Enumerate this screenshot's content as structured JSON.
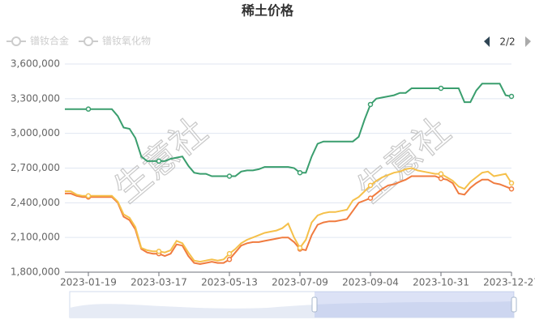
{
  "chart_data": {
    "type": "line",
    "title": "稀土价格",
    "legend": {
      "items": [
        "镨钕合金",
        "镨钕氧化物"
      ],
      "page": "2/2"
    },
    "watermark": "生意社",
    "categories": [
      null,
      null,
      null,
      null,
      "2023-01-19",
      null,
      null,
      null,
      null,
      null,
      null,
      null,
      null,
      null,
      null,
      null,
      "2023-03-17",
      null,
      null,
      null,
      null,
      null,
      null,
      null,
      null,
      null,
      null,
      null,
      "2023-05-13",
      null,
      null,
      null,
      null,
      null,
      null,
      null,
      null,
      null,
      null,
      null,
      "2023-07-09",
      null,
      null,
      null,
      null,
      null,
      null,
      null,
      null,
      null,
      null,
      null,
      "2023-09-04",
      null,
      null,
      null,
      null,
      null,
      null,
      null,
      null,
      null,
      null,
      null,
      "2023-10-31",
      null,
      null,
      null,
      null,
      null,
      null,
      null,
      null,
      null,
      null,
      null,
      "2023-12-27"
    ],
    "series": [
      {
        "color": "#3a9e6e",
        "values": [
          3210000,
          3210000,
          3210000,
          3210000,
          3210000,
          3210000,
          3210000,
          3210000,
          3210000,
          3150000,
          3050000,
          3040000,
          2960000,
          2800000,
          2760000,
          2760000,
          2760000,
          2760000,
          2780000,
          2790000,
          2800000,
          2720000,
          2660000,
          2650000,
          2650000,
          2630000,
          2630000,
          2630000,
          2630000,
          2630000,
          2670000,
          2680000,
          2680000,
          2690000,
          2710000,
          2710000,
          2710000,
          2710000,
          2710000,
          2700000,
          2660000,
          2660000,
          2800000,
          2910000,
          2930000,
          2930000,
          2930000,
          2930000,
          2930000,
          2930000,
          2970000,
          3120000,
          3250000,
          3300000,
          3310000,
          3320000,
          3330000,
          3350000,
          3350000,
          3390000,
          3390000,
          3390000,
          3390000,
          3390000,
          3390000,
          3390000,
          3390000,
          3390000,
          3270000,
          3270000,
          3370000,
          3430000,
          3430000,
          3430000,
          3430000,
          3330000,
          3320000
        ]
      },
      {
        "color": "#f07b3f",
        "values": [
          2480000,
          2480000,
          2460000,
          2450000,
          2450000,
          2450000,
          2450000,
          2450000,
          2450000,
          2400000,
          2280000,
          2250000,
          2170000,
          2000000,
          1970000,
          1960000,
          1960000,
          1940000,
          1960000,
          2040000,
          2030000,
          1940000,
          1880000,
          1870000,
          1880000,
          1890000,
          1880000,
          1880000,
          1910000,
          1970000,
          2030000,
          2050000,
          2060000,
          2060000,
          2070000,
          2080000,
          2090000,
          2100000,
          2100000,
          2060000,
          2000000,
          1990000,
          2120000,
          2210000,
          2230000,
          2240000,
          2240000,
          2250000,
          2260000,
          2330000,
          2400000,
          2420000,
          2440000,
          2480000,
          2520000,
          2550000,
          2560000,
          2580000,
          2600000,
          2630000,
          2630000,
          2630000,
          2630000,
          2630000,
          2610000,
          2600000,
          2570000,
          2480000,
          2470000,
          2530000,
          2570000,
          2600000,
          2600000,
          2570000,
          2560000,
          2540000,
          2520000
        ]
      },
      {
        "color": "#f5c04a",
        "values": [
          2500000,
          2500000,
          2470000,
          2460000,
          2460000,
          2460000,
          2460000,
          2460000,
          2460000,
          2410000,
          2300000,
          2270000,
          2190000,
          2010000,
          1990000,
          1980000,
          1980000,
          1970000,
          1990000,
          2070000,
          2050000,
          1970000,
          1900000,
          1890000,
          1900000,
          1910000,
          1900000,
          1910000,
          1960000,
          2000000,
          2050000,
          2080000,
          2100000,
          2120000,
          2140000,
          2150000,
          2160000,
          2180000,
          2220000,
          2100000,
          2010000,
          2080000,
          2230000,
          2290000,
          2310000,
          2320000,
          2320000,
          2330000,
          2340000,
          2420000,
          2450000,
          2500000,
          2550000,
          2590000,
          2620000,
          2640000,
          2660000,
          2670000,
          2690000,
          2700000,
          2680000,
          2670000,
          2660000,
          2650000,
          2650000,
          2620000,
          2590000,
          2540000,
          2520000,
          2580000,
          2620000,
          2660000,
          2670000,
          2630000,
          2640000,
          2650000,
          2570000
        ]
      }
    ],
    "ylim": [
      1800000,
      3600000
    ],
    "yticks": [
      {
        "value": 1800000,
        "label": "1,800,000"
      },
      {
        "value": 2100000,
        "label": "2,100,000"
      },
      {
        "value": 2400000,
        "label": "2,400,000"
      },
      {
        "value": 2700000,
        "label": "2,700,000"
      },
      {
        "value": 3000000,
        "label": "3,000,000"
      },
      {
        "value": 3300000,
        "label": "3,300,000"
      },
      {
        "value": 3600000,
        "label": "3,600,000"
      }
    ],
    "grid": true
  }
}
